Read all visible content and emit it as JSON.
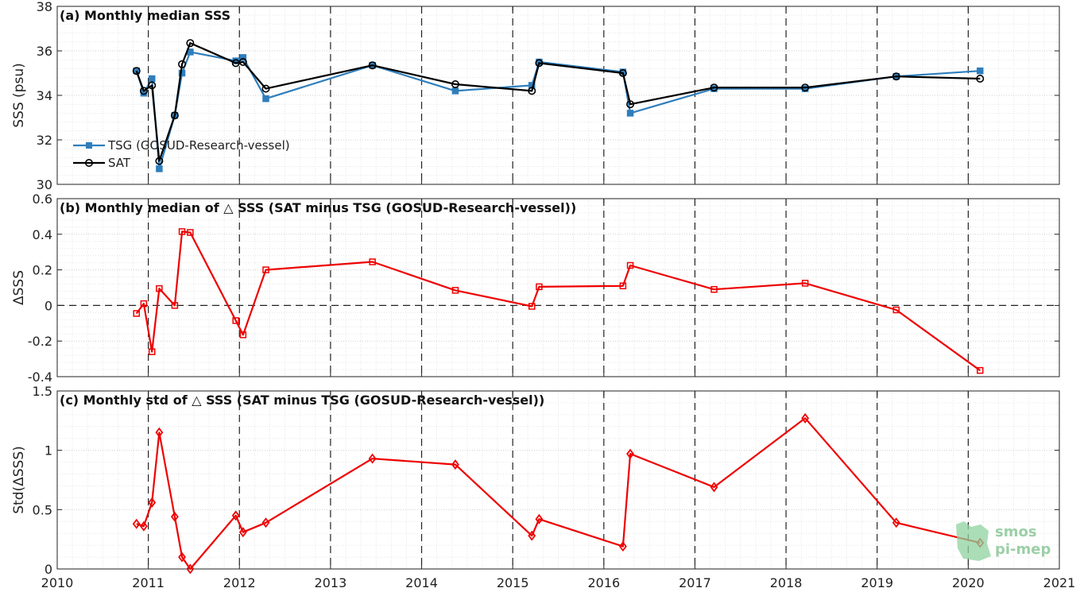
{
  "chart_data": [
    {
      "type": "line",
      "title": "(a) Monthly median SSS",
      "ylabel": "SSS (psu)",
      "xlim": [
        2010,
        2021
      ],
      "ylim": [
        30,
        38
      ],
      "yticks": [
        "30",
        "32",
        "34",
        "36",
        "38"
      ],
      "grid": true,
      "legend": "left-lower",
      "series": [
        {
          "name": "TSG (GOSUD-Research-vessel)",
          "color": "#2e7ebc",
          "marker": "square",
          "x": [
            2010.87,
            2010.95,
            2011.04,
            2011.12,
            2011.29,
            2011.37,
            2011.46,
            2011.96,
            2012.04,
            2012.29,
            2013.46,
            2014.37,
            2015.21,
            2015.29,
            2016.21,
            2016.29,
            2017.21,
            2018.21,
            2019.21,
            2020.13
          ],
          "values": [
            35.1,
            34.1,
            34.75,
            30.7,
            33.1,
            35.0,
            35.95,
            35.55,
            35.7,
            33.85,
            35.35,
            34.2,
            34.45,
            35.5,
            35.05,
            33.2,
            34.3,
            34.3,
            34.85,
            35.1
          ]
        },
        {
          "name": "SAT",
          "color": "#000000",
          "marker": "circle",
          "x": [
            2010.87,
            2010.95,
            2011.04,
            2011.12,
            2011.29,
            2011.37,
            2011.46,
            2011.96,
            2012.04,
            2012.29,
            2013.46,
            2014.37,
            2015.21,
            2015.29,
            2016.21,
            2016.29,
            2017.21,
            2018.21,
            2019.21,
            2020.13
          ],
          "values": [
            35.1,
            34.2,
            34.45,
            31.05,
            33.1,
            35.4,
            36.35,
            35.45,
            35.5,
            34.3,
            35.35,
            34.5,
            34.2,
            35.45,
            35.0,
            33.6,
            34.35,
            34.35,
            34.85,
            34.75
          ]
        }
      ]
    },
    {
      "type": "line",
      "title": "(b) Monthly median of △ SSS (SAT minus TSG (GOSUD-Research-vessel))",
      "ylabel": "ΔSSS",
      "xlim": [
        2010,
        2021
      ],
      "ylim": [
        -0.4,
        0.6
      ],
      "yticks": [
        "-0.4",
        "-0.2",
        "0",
        "0.2",
        "0.4",
        "0.6"
      ],
      "grid": true,
      "zero_line": true,
      "series": [
        {
          "name": "",
          "color": "#ee0000",
          "marker": "square",
          "x": [
            2010.87,
            2010.95,
            2011.04,
            2011.12,
            2011.29,
            2011.37,
            2011.46,
            2011.96,
            2012.04,
            2012.29,
            2013.46,
            2014.37,
            2015.21,
            2015.29,
            2016.21,
            2016.29,
            2017.21,
            2018.21,
            2019.21,
            2020.13
          ],
          "values": [
            -0.045,
            0.01,
            -0.26,
            0.095,
            0.0,
            0.415,
            0.41,
            -0.085,
            -0.165,
            0.2,
            0.245,
            0.085,
            -0.005,
            0.105,
            0.11,
            0.225,
            0.09,
            0.125,
            -0.025,
            -0.365
          ]
        }
      ]
    },
    {
      "type": "line",
      "title": "(c) Monthly std of △ SSS (SAT minus TSG (GOSUD-Research-vessel))",
      "ylabel": "Std(ΔSSS)",
      "xlim": [
        2010,
        2021
      ],
      "ylim": [
        0,
        1.5
      ],
      "yticks": [
        "0",
        "0.5",
        "1",
        "1.5"
      ],
      "xticks": [
        "2010",
        "2011",
        "2012",
        "2013",
        "2014",
        "2015",
        "2016",
        "2017",
        "2018",
        "2019",
        "2020",
        "2021"
      ],
      "grid": true,
      "series": [
        {
          "name": "",
          "color": "#ee0000",
          "marker": "diamond",
          "x": [
            2010.87,
            2010.95,
            2011.04,
            2011.12,
            2011.29,
            2011.37,
            2011.46,
            2011.96,
            2012.04,
            2012.29,
            2013.46,
            2014.37,
            2015.21,
            2015.29,
            2016.21,
            2016.29,
            2017.21,
            2018.21,
            2019.21,
            2020.13
          ],
          "values": [
            0.38,
            0.36,
            0.56,
            1.15,
            0.44,
            0.1,
            0.0,
            0.45,
            0.31,
            0.39,
            0.93,
            0.88,
            0.28,
            0.42,
            0.19,
            0.97,
            0.69,
            1.27,
            0.39,
            0.22
          ]
        }
      ]
    }
  ],
  "vertical_dashed_lines_x": [
    2011.0,
    2012.0,
    2013.0,
    2014.0,
    2015.0,
    2016.0,
    2017.0,
    2018.0,
    2019.0,
    2020.0
  ],
  "logo": {
    "line1": "smos",
    "line2": "pi-mep"
  }
}
